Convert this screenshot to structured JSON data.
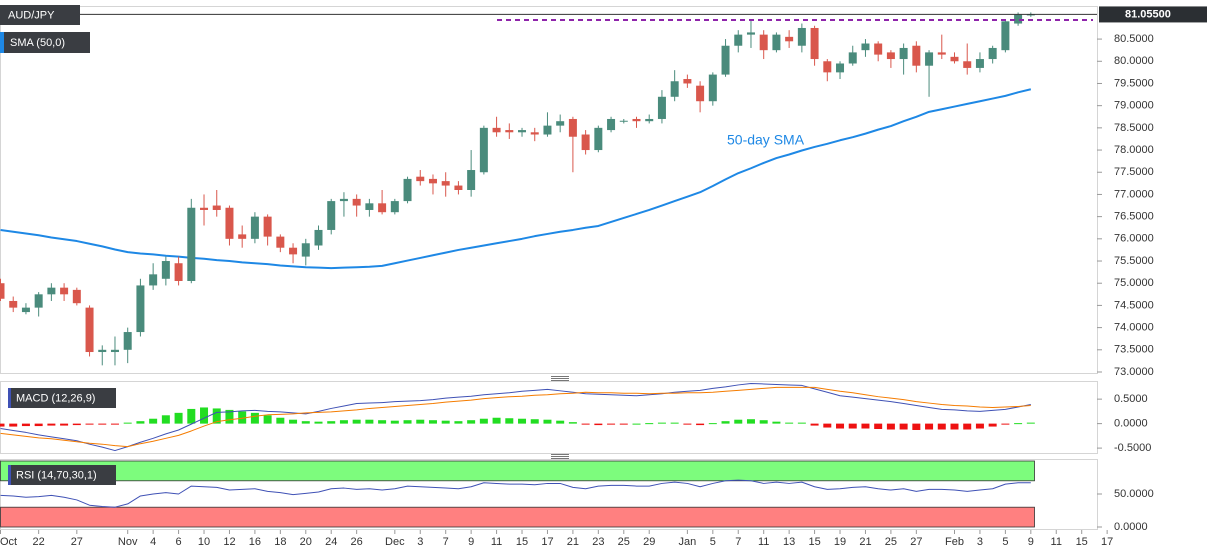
{
  "chart_data": [
    {
      "type": "candlestick",
      "title": "AUD/JPY",
      "categories": [
        "Oct",
        null,
        null,
        "22",
        null,
        null,
        "27",
        null,
        null,
        null,
        "Nov",
        null,
        "4",
        null,
        "6",
        null,
        "10",
        null,
        "12",
        null,
        "16",
        null,
        "18",
        null,
        "20",
        null,
        "24",
        null,
        "26",
        null,
        null,
        "Dec",
        null,
        "3",
        null,
        "7",
        null,
        "9",
        null,
        "11",
        null,
        "15",
        null,
        "17",
        null,
        "21",
        null,
        "23",
        null,
        "25",
        null,
        "29",
        null,
        null,
        "Jan",
        null,
        "5",
        null,
        "7",
        null,
        "11",
        null,
        "13",
        null,
        "15",
        null,
        "19",
        null,
        "21",
        null,
        "25",
        null,
        "27",
        null,
        null,
        "Feb",
        null,
        "3",
        null,
        "5",
        null,
        "9",
        null,
        "11",
        null,
        "15",
        null,
        "17"
      ],
      "open": [
        75.0,
        74.6,
        74.35,
        74.45,
        74.75,
        74.9,
        74.85,
        74.45,
        73.45,
        73.45,
        73.5,
        73.9,
        74.95,
        75.1,
        75.45,
        75.05,
        76.7,
        76.75,
        76.7,
        76.1,
        76.0,
        76.5,
        76.05,
        75.8,
        75.6,
        75.85,
        76.2,
        76.85,
        76.9,
        76.65,
        76.8,
        76.6,
        76.85,
        77.4,
        77.35,
        77.3,
        77.2,
        77.1,
        77.5,
        78.5,
        78.45,
        78.4,
        78.4,
        78.35,
        78.55,
        78.7,
        78.35,
        78.0,
        78.45,
        78.65,
        78.7,
        78.65,
        78.7,
        79.2,
        79.6,
        79.45,
        79.1,
        79.7,
        80.35,
        80.6,
        80.6,
        80.25,
        80.55,
        80.35,
        80.75,
        80.0,
        79.75,
        79.95,
        80.25,
        80.4,
        80.2,
        80.05,
        80.35,
        79.9,
        80.2,
        80.1,
        80.0,
        79.85,
        80.05,
        80.25,
        80.85,
        81.04,
        null,
        null,
        null,
        null,
        null,
        null
      ],
      "high": [
        75.1,
        74.7,
        74.55,
        74.8,
        75.0,
        75.0,
        74.9,
        74.5,
        73.6,
        73.8,
        74.0,
        75.1,
        75.45,
        75.6,
        75.6,
        76.9,
        77.0,
        77.1,
        76.75,
        76.3,
        76.6,
        76.55,
        76.1,
        75.9,
        76.0,
        76.3,
        76.9,
        77.05,
        77.0,
        76.9,
        77.1,
        76.9,
        77.4,
        77.55,
        77.45,
        77.5,
        77.3,
        78.0,
        78.55,
        78.75,
        78.6,
        78.5,
        78.5,
        78.85,
        78.8,
        78.75,
        78.45,
        78.55,
        78.75,
        78.7,
        78.75,
        78.8,
        79.35,
        79.8,
        79.7,
        79.55,
        79.75,
        80.5,
        80.7,
        80.95,
        80.7,
        80.65,
        80.7,
        80.85,
        80.8,
        80.05,
        80.0,
        80.35,
        80.5,
        80.45,
        80.25,
        80.4,
        80.45,
        80.25,
        80.6,
        80.2,
        80.4,
        80.2,
        80.35,
        80.95,
        81.1,
        81.1,
        null,
        null,
        null,
        null,
        null,
        null
      ],
      "low": [
        74.6,
        74.35,
        74.3,
        74.25,
        74.6,
        74.6,
        74.5,
        73.35,
        73.15,
        73.15,
        73.2,
        73.8,
        74.85,
        74.95,
        74.95,
        75.0,
        76.3,
        76.5,
        75.85,
        75.8,
        75.9,
        75.85,
        75.7,
        75.45,
        75.4,
        75.75,
        76.1,
        76.5,
        76.5,
        76.5,
        76.55,
        76.55,
        76.8,
        77.2,
        77.0,
        76.95,
        77.0,
        76.95,
        77.45,
        78.3,
        78.25,
        78.3,
        78.2,
        78.3,
        78.4,
        77.5,
        77.9,
        77.95,
        78.4,
        78.6,
        78.5,
        78.6,
        78.6,
        79.1,
        79.4,
        78.85,
        79.0,
        79.65,
        80.2,
        80.3,
        80.05,
        80.2,
        80.3,
        80.2,
        79.9,
        79.55,
        79.6,
        79.9,
        80.1,
        80.0,
        79.85,
        79.7,
        79.75,
        79.2,
        80.05,
        79.95,
        79.7,
        79.75,
        79.95,
        80.2,
        80.8,
        81.0,
        null,
        null,
        null,
        null,
        null,
        null
      ],
      "close": [
        74.65,
        74.45,
        74.45,
        74.75,
        74.9,
        74.75,
        74.55,
        73.45,
        73.5,
        73.5,
        73.9,
        74.95,
        75.2,
        75.5,
        75.05,
        76.7,
        76.65,
        76.65,
        76.0,
        76.0,
        76.5,
        76.05,
        75.8,
        75.65,
        75.9,
        76.2,
        76.85,
        76.9,
        76.75,
        76.8,
        76.6,
        76.85,
        77.35,
        77.3,
        77.25,
        77.2,
        77.1,
        77.55,
        78.5,
        78.4,
        78.4,
        78.45,
        78.35,
        78.55,
        78.65,
        78.3,
        78.0,
        78.5,
        78.7,
        78.66,
        78.65,
        78.7,
        79.2,
        79.55,
        79.5,
        79.1,
        79.7,
        80.35,
        80.6,
        80.65,
        80.25,
        80.6,
        80.45,
        80.75,
        80.05,
        79.75,
        79.95,
        80.2,
        80.4,
        80.15,
        80.05,
        80.3,
        79.9,
        80.2,
        80.15,
        80.0,
        79.85,
        80.05,
        80.3,
        80.9,
        81.05,
        81.055,
        null,
        null,
        null,
        null,
        null,
        null
      ],
      "up_color": "#4a8b7c",
      "down_color": "#d9574c",
      "series": [
        {
          "name": "SMA (50,0)",
          "color": "#1e88e5",
          "values": [
            76.2,
            76.16,
            76.12,
            76.08,
            76.03,
            75.99,
            75.95,
            75.89,
            75.83,
            75.76,
            75.7,
            75.67,
            75.65,
            75.62,
            75.6,
            75.57,
            75.55,
            75.52,
            75.5,
            75.47,
            75.45,
            75.43,
            75.4,
            75.38,
            75.36,
            75.35,
            75.34,
            75.35,
            75.36,
            75.37,
            75.39,
            75.45,
            75.51,
            75.57,
            75.63,
            75.69,
            75.75,
            75.8,
            75.85,
            75.9,
            75.95,
            76.0,
            76.06,
            76.11,
            76.16,
            76.2,
            76.25,
            76.29,
            76.38,
            76.47,
            76.56,
            76.65,
            76.75,
            76.85,
            76.95,
            77.05,
            77.19,
            77.34,
            77.48,
            77.59,
            77.71,
            77.82,
            77.9,
            77.99,
            78.07,
            78.14,
            78.22,
            78.29,
            78.37,
            78.46,
            78.54,
            78.65,
            78.75,
            78.86,
            78.92,
            78.98,
            79.04,
            79.1,
            79.16,
            79.22,
            79.3,
            79.37,
            null,
            null,
            null,
            null,
            null,
            null
          ]
        }
      ],
      "annotation": "50-day SMA",
      "last_price": {
        "value": 81.055,
        "label": "81.05500"
      },
      "resistance": 80.93,
      "resistance_color": "#8e24aa",
      "ylim": [
        73.0,
        81.2
      ],
      "yticks": [
        {
          "value": 73.0,
          "label": "73.0000"
        },
        {
          "value": 73.5,
          "label": "73.5000"
        },
        {
          "value": 74.0,
          "label": "74.0000"
        },
        {
          "value": 74.5,
          "label": "74.5000"
        },
        {
          "value": 75.0,
          "label": "75.0000"
        },
        {
          "value": 75.5,
          "label": "75.5000"
        },
        {
          "value": 76.0,
          "label": "76.0000"
        },
        {
          "value": 76.5,
          "label": "76.5000"
        },
        {
          "value": 77.0,
          "label": "77.0000"
        },
        {
          "value": 77.5,
          "label": "77.5000"
        },
        {
          "value": 78.0,
          "label": "78.0000"
        },
        {
          "value": 78.5,
          "label": "78.5000"
        },
        {
          "value": 79.0,
          "label": "79.0000"
        },
        {
          "value": 79.5,
          "label": "79.5000"
        },
        {
          "value": 80.0,
          "label": "80.0000"
        },
        {
          "value": 80.5,
          "label": "80.5000"
        }
      ]
    },
    {
      "type": "macd",
      "title": "MACD (12,26,9)",
      "series": [
        {
          "color": "#3f51b5",
          "values": [
            -0.1,
            -0.14,
            -0.18,
            -0.23,
            -0.27,
            -0.31,
            -0.35,
            -0.42,
            -0.48,
            -0.55,
            -0.47,
            -0.38,
            -0.3,
            -0.21,
            -0.13,
            -0.01,
            0.11,
            0.23,
            0.24,
            0.26,
            0.27,
            0.25,
            0.24,
            0.22,
            0.2,
            0.25,
            0.31,
            0.36,
            0.41,
            0.42,
            0.43,
            0.45,
            0.46,
            0.47,
            0.49,
            0.52,
            0.54,
            0.56,
            0.59,
            0.61,
            0.63,
            0.66,
            0.68,
            0.7,
            0.67,
            0.64,
            0.61,
            0.6,
            0.59,
            0.58,
            0.57,
            0.59,
            0.61,
            0.64,
            0.66,
            0.68,
            0.72,
            0.75,
            0.79,
            0.82,
            0.81,
            0.8,
            0.79,
            0.78,
            0.71,
            0.64,
            0.57,
            0.54,
            0.51,
            0.48,
            0.45,
            0.41,
            0.37,
            0.33,
            0.29,
            0.28,
            0.26,
            0.25,
            0.27,
            0.29,
            0.34,
            0.39
          ]
        },
        {
          "color": "#f57c00",
          "values": [
            -0.2,
            -0.23,
            -0.26,
            -0.29,
            -0.31,
            -0.34,
            -0.37,
            -0.4,
            -0.42,
            -0.45,
            -0.47,
            -0.41,
            -0.36,
            -0.3,
            -0.24,
            -0.15,
            -0.05,
            0.04,
            0.08,
            0.11,
            0.15,
            0.18,
            0.19,
            0.2,
            0.22,
            0.23,
            0.24,
            0.26,
            0.28,
            0.31,
            0.33,
            0.35,
            0.37,
            0.39,
            0.41,
            0.44,
            0.46,
            0.48,
            0.51,
            0.53,
            0.55,
            0.56,
            0.58,
            0.59,
            0.61,
            0.62,
            0.64,
            0.63,
            0.63,
            0.62,
            0.62,
            0.61,
            0.62,
            0.62,
            0.63,
            0.63,
            0.64,
            0.66,
            0.68,
            0.7,
            0.72,
            0.74,
            0.74,
            0.74,
            0.74,
            0.7,
            0.66,
            0.63,
            0.59,
            0.55,
            0.52,
            0.49,
            0.45,
            0.42,
            0.39,
            0.37,
            0.36,
            0.34,
            0.33,
            0.34,
            0.35,
            0.37
          ]
        }
      ],
      "histogram": [
        -0.06,
        -0.06,
        -0.05,
        -0.05,
        -0.04,
        -0.04,
        -0.03,
        -0.02,
        -0.02,
        -0.01,
        0.02,
        0.05,
        0.1,
        0.17,
        0.22,
        0.3,
        0.33,
        0.31,
        0.28,
        0.25,
        0.22,
        0.17,
        0.12,
        0.08,
        0.05,
        0.04,
        0.05,
        0.07,
        0.08,
        0.08,
        0.07,
        0.06,
        0.07,
        0.08,
        0.07,
        0.06,
        0.05,
        0.07,
        0.1,
        0.12,
        0.11,
        0.1,
        0.09,
        0.08,
        0.06,
        0.03,
        -0.02,
        -0.03,
        -0.02,
        -0.01,
        0,
        0.01,
        0.02,
        0.02,
        -0.01,
        -0.03,
        0.01,
        0.05,
        0.08,
        0.09,
        0.07,
        0.04,
        0.02,
        0.02,
        -0.04,
        -0.08,
        -0.1,
        -0.1,
        -0.1,
        -0.11,
        -0.12,
        -0.12,
        -0.13,
        -0.12,
        -0.12,
        -0.12,
        -0.12,
        -0.1,
        -0.06,
        -0.02,
        0.01,
        0.02
      ],
      "bar_up_color": "#22dd22",
      "bar_down_color": "#ee1111",
      "ylim": [
        -0.6,
        0.85
      ],
      "yticks": [
        {
          "value": 0.5,
          "label": "0.5000"
        },
        {
          "value": 0,
          "label": "0.0000"
        },
        {
          "value": -0.5,
          "label": "-0.5000"
        }
      ]
    },
    {
      "type": "rsi",
      "title": "RSI (14,70,30,1)",
      "values": [
        48,
        47,
        45,
        46,
        48,
        45,
        41,
        33,
        31,
        30,
        35,
        47,
        50,
        52,
        50,
        62,
        61,
        60,
        56,
        57,
        58,
        54,
        52,
        49,
        51,
        53,
        58,
        59,
        57,
        58,
        56,
        58,
        62,
        61,
        60,
        59,
        58,
        61,
        67,
        66,
        65,
        65,
        64,
        66,
        66,
        60,
        58,
        62,
        63,
        63,
        62,
        62,
        66,
        68,
        66,
        61,
        66,
        70,
        71,
        70,
        66,
        68,
        66,
        68,
        61,
        57,
        58,
        60,
        61,
        58,
        56,
        58,
        54,
        57,
        57,
        56,
        54,
        56,
        58,
        65,
        67,
        67
      ],
      "color": "#3f51b5",
      "upper": 70,
      "lower": 30,
      "upper_color": "#7dfc7d",
      "lower_color": "#ff8080",
      "ylim": [
        0,
        100
      ],
      "yticks": [
        {
          "value": 50,
          "label": "50.0000"
        },
        {
          "value": 0,
          "label": "0.0000"
        }
      ]
    }
  ]
}
